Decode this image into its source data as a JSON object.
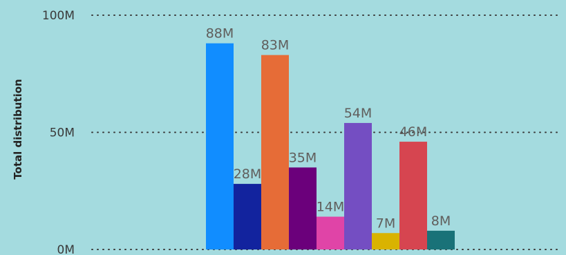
{
  "chart_data": {
    "type": "bar",
    "categories": [
      "",
      "",
      "",
      "",
      "",
      "",
      "",
      "",
      ""
    ],
    "values": [
      88,
      28,
      83,
      35,
      14,
      54,
      7,
      46,
      8
    ],
    "data_labels": [
      "88M",
      "28M",
      "83M",
      "35M",
      "14M",
      "54M",
      "7M",
      "46M",
      "8M"
    ],
    "colors": [
      "#118DFF",
      "#12239E",
      "#E66C37",
      "#6B007B",
      "#E044A7",
      "#744EC2",
      "#D9B300",
      "#D64550",
      "#197278"
    ],
    "ylabel": "Total distribution",
    "yticks": [
      0,
      50,
      100
    ],
    "ytick_labels": [
      "0M",
      "50M",
      "100M"
    ],
    "ylim": [
      0,
      100
    ],
    "grid": true,
    "legend": "none"
  }
}
